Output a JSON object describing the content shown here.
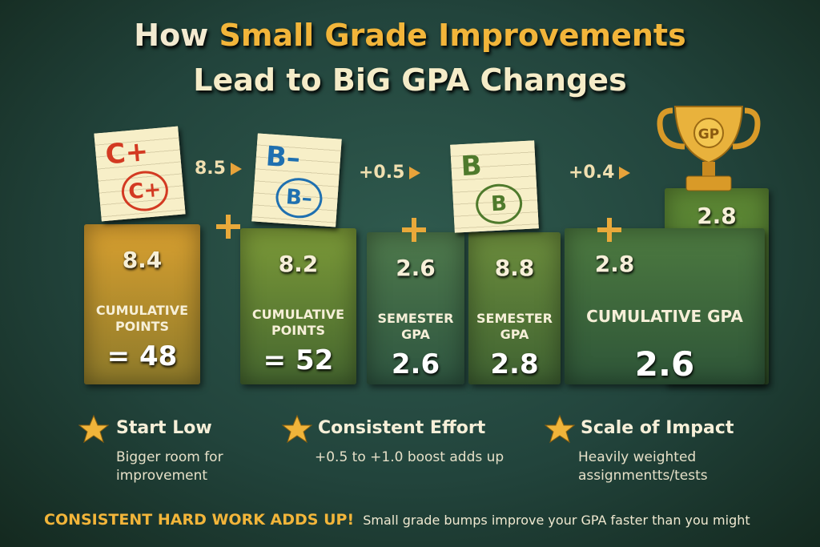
{
  "header": {
    "title_parts": [
      "How",
      "Small Grade Improvements"
    ],
    "title_line2": "Lead to BiG GPA Changes"
  },
  "papers": [
    {
      "grade": "C+",
      "circled": "C+"
    },
    {
      "grade": "B–",
      "circled": "B–"
    },
    {
      "grade": "B",
      "circled": "B"
    }
  ],
  "steps": [
    "8.5",
    "+0.5",
    "+0.4"
  ],
  "blocks": [
    {
      "value": "8.4",
      "label": "CUMULATIVE POINTS",
      "result": "= 48"
    },
    {
      "value": "8.2",
      "label": "CUMULATIVE POINTS",
      "result": "= 52"
    },
    {
      "value": "2.6",
      "label": "SEMESTER GPA",
      "result": "2.6"
    },
    {
      "value": "8.8",
      "label": "SEMESTER GPA",
      "result": "2.8"
    },
    {
      "value": "2.8",
      "label": "CUMULATIVE GPA",
      "result": "2.6"
    }
  ],
  "trophy": {
    "badge": "GP",
    "pedestal_value": "2.8"
  },
  "tips": [
    {
      "title": "Start Low",
      "text": "Bigger room for improvement"
    },
    {
      "title": "Consistent Effort",
      "text": "+0.5 to +1.0 boost adds up"
    },
    {
      "title": "Scale of Impact",
      "text": "Heavily weighted assignmentts/tests"
    }
  ],
  "footer": {
    "strong": "CONSISTENT HARD WORK ADDS UP!",
    "text": "Small grade bumps improve your GPA faster than you might"
  }
}
